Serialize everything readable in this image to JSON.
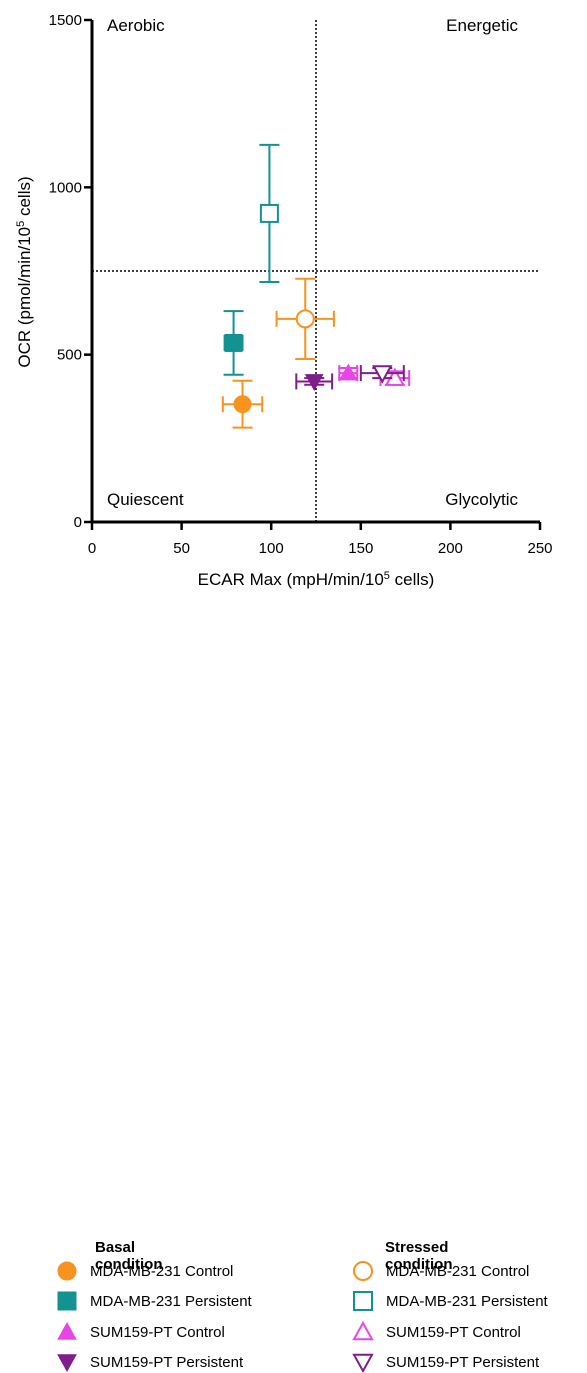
{
  "chart_data": {
    "type": "scatter",
    "xlabel": "ECAR Max (mpH/min/10",
    "xlabel_sup": "5",
    "xlabel_end": " cells)",
    "ylabel": "OCR (pmol/min/10",
    "ylabel_sup": "5",
    "ylabel_end": " cells)",
    "xlim": [
      0,
      250
    ],
    "ylim": [
      0,
      1500
    ],
    "x_ticks": [
      "0",
      "50",
      "100",
      "150",
      "200",
      "250"
    ],
    "y_ticks": [
      "0",
      "500",
      "1000",
      "1500"
    ],
    "x_tick_values": [
      0,
      50,
      100,
      150,
      200,
      250
    ],
    "y_tick_values": [
      0,
      500,
      1000,
      1500
    ],
    "divider_x": 125,
    "divider_y": 750,
    "quadrants": {
      "top_left": "Aerobic",
      "top_right": "Energetic",
      "bottom_left": "Quiescent",
      "bottom_right": "Glycolytic"
    },
    "colors": {
      "mda_control": "#f7931e",
      "mda_persistent": "#149191",
      "sum_control": "#e945e6",
      "sum_persistent": "#7f1d8c"
    },
    "series": [
      {
        "name": "MDA-MB-231 Control",
        "condition": "basal",
        "marker": "circle",
        "filled": true,
        "color": "#f7931e",
        "x": 84,
        "y": 352,
        "xerr": 11,
        "yerr": 70
      },
      {
        "name": "MDA-MB-231 Persistent",
        "condition": "basal",
        "marker": "square",
        "filled": true,
        "color": "#149191",
        "x": 79,
        "y": 535,
        "xerr": 5,
        "yerr": 95
      },
      {
        "name": "SUM159-PT Control",
        "condition": "basal",
        "marker": "triangle-up",
        "filled": true,
        "color": "#e945e6",
        "x": 143,
        "y": 445,
        "xerr": 5,
        "yerr": 15
      },
      {
        "name": "SUM159-PT Persistent",
        "condition": "basal",
        "marker": "triangle-down",
        "filled": true,
        "color": "#7f1d8c",
        "x": 124,
        "y": 420,
        "xerr": 10,
        "yerr": 10
      },
      {
        "name": "MDA-MB-231 Control",
        "condition": "stressed",
        "marker": "circle",
        "filled": false,
        "color": "#f7931e",
        "x": 119,
        "y": 607,
        "xerr": 16,
        "yerr": 120
      },
      {
        "name": "MDA-MB-231 Persistent",
        "condition": "stressed",
        "marker": "square",
        "filled": false,
        "color": "#149191",
        "x": 99,
        "y": 922,
        "xerr": 0,
        "yerr": 205
      },
      {
        "name": "SUM159-PT Control",
        "condition": "stressed",
        "marker": "triangle-up",
        "filled": false,
        "color": "#e945e6",
        "x": 169,
        "y": 430,
        "xerr": 8,
        "yerr": 20
      },
      {
        "name": "SUM159-PT Persistent",
        "condition": "stressed",
        "marker": "triangle-down",
        "filled": false,
        "color": "#7f1d8c",
        "x": 162,
        "y": 445,
        "xerr": 12,
        "yerr": 15
      }
    ]
  },
  "legend": {
    "basal_title": "Basal condition",
    "stressed_title": "Stressed condition",
    "items": [
      {
        "label": "MDA-MB-231 Control",
        "marker": "circle",
        "color": "#f7931e"
      },
      {
        "label": "MDA-MB-231 Persistent",
        "marker": "square",
        "color": "#149191"
      },
      {
        "label": "SUM159-PT Control",
        "marker": "triangle-up",
        "color": "#e945e6"
      },
      {
        "label": "SUM159-PT Persistent",
        "marker": "triangle-down",
        "color": "#7f1d8c"
      }
    ]
  }
}
